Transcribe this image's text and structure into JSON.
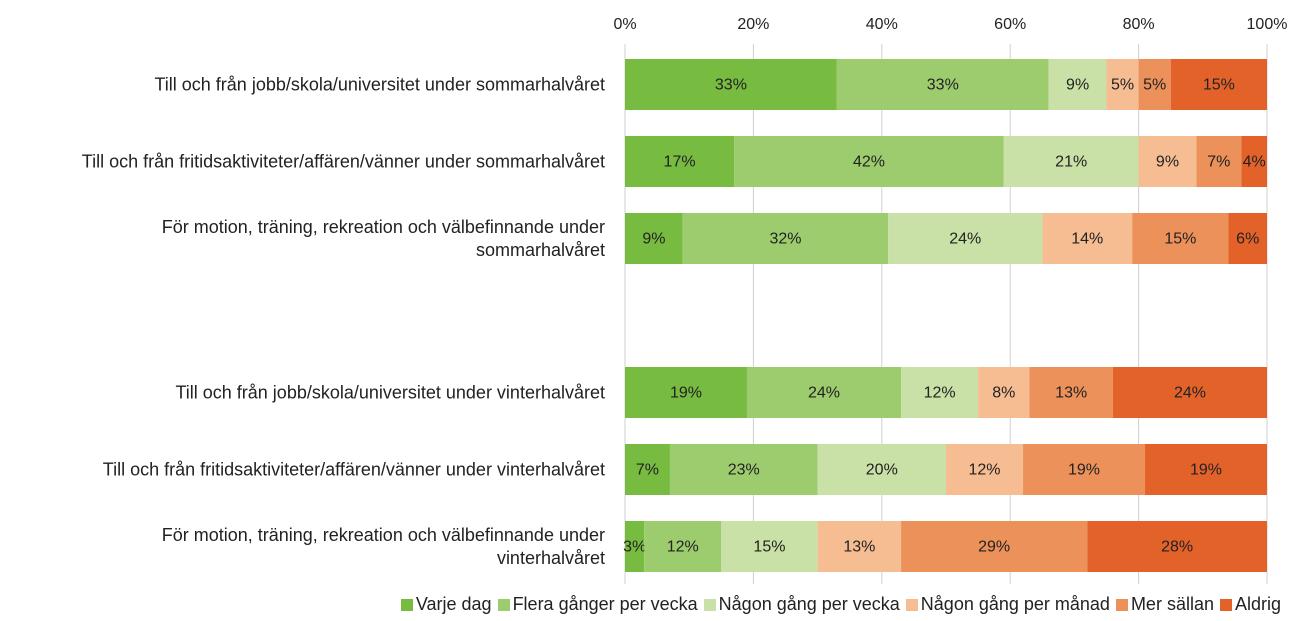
{
  "chart_data": {
    "type": "stacked_barh",
    "categories": [
      "Till och från jobb/skola/universitet under sommarhalvåret",
      "Till och från fritidsaktiviteter/affären/vänner under sommarhalvåret",
      "För motion, träning, rekreation och välbefinnande under sommarhalvåret",
      null,
      "Till och från jobb/skola/universitet under vinterhalvåret",
      "Till och från fritidsaktiviteter/affären/vänner under vinterhalvåret",
      "För motion, träning, rekreation och välbefinnande under vinterhalvåret"
    ],
    "series": [
      {
        "name": "Varje dag",
        "color": "#77bb41",
        "values": [
          33,
          17,
          9,
          null,
          19,
          7,
          3
        ],
        "value_labels": [
          "33%",
          "17%",
          "9%",
          null,
          "19%",
          "7%",
          "3%"
        ]
      },
      {
        "name": "Flera gånger per vecka",
        "color": "#9dcc6f",
        "values": [
          33,
          42,
          32,
          null,
          24,
          23,
          12
        ],
        "value_labels": [
          "33%",
          "42%",
          "32%",
          null,
          "24%",
          "23%",
          "12%"
        ]
      },
      {
        "name": "Någon gång per vecka",
        "color": "#c9e1a6",
        "values": [
          9,
          21,
          24,
          null,
          12,
          20,
          15
        ],
        "value_labels": [
          "9%",
          "21%",
          "24%",
          null,
          "12%",
          "20%",
          "15%"
        ]
      },
      {
        "name": "Någon gång per månad",
        "color": "#f6bd93",
        "values": [
          5,
          9,
          14,
          null,
          8,
          12,
          13
        ],
        "value_labels": [
          "5%",
          "9%",
          "14%",
          null,
          "8%",
          "12%",
          "13%"
        ]
      },
      {
        "name": "Mer sällan",
        "color": "#ec915a",
        "values": [
          5,
          7,
          15,
          null,
          13,
          19,
          29
        ],
        "value_labels": [
          "5%",
          "7%",
          "15%",
          null,
          "13%",
          "19%",
          "29%"
        ]
      },
      {
        "name": "Aldrig",
        "color": "#e3622a",
        "values": [
          15,
          4,
          6,
          null,
          24,
          19,
          28
        ],
        "value_labels": [
          "15%",
          "4%",
          "6%",
          null,
          "24%",
          "19%",
          "28%"
        ]
      }
    ],
    "xlim": [
      0,
      100
    ],
    "xticks": [
      {
        "value": 0,
        "label": "0%"
      },
      {
        "value": 20,
        "label": "20%"
      },
      {
        "value": 40,
        "label": "40%"
      },
      {
        "value": 60,
        "label": "60%"
      },
      {
        "value": 80,
        "label": "80%"
      },
      {
        "value": 100,
        "label": "100%"
      }
    ],
    "grid": true,
    "legend": "bottom"
  }
}
